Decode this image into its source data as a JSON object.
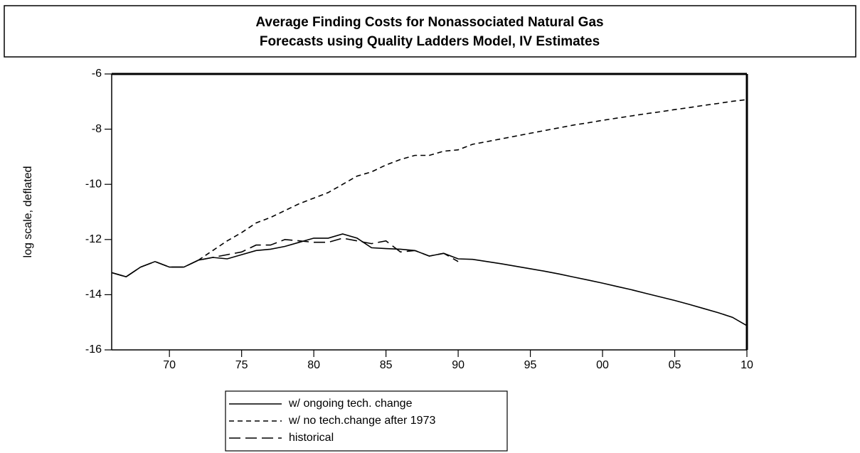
{
  "chart_data": {
    "type": "line",
    "title": "Average Finding Costs for Nonassociated Natural Gas",
    "subtitle": "Forecasts using Quality Ladders Model, IV Estimates",
    "y_label": "log scale, deflated",
    "x": [
      1966,
      1967,
      1968,
      1969,
      1970,
      1971,
      1972,
      1973,
      1974,
      1975,
      1976,
      1977,
      1978,
      1979,
      1980,
      1981,
      1982,
      1983,
      1984,
      1985,
      1986,
      1987,
      1988,
      1989,
      1990,
      1991,
      1992,
      1993,
      1994,
      1995,
      1996,
      1997,
      1998,
      1999,
      2000,
      2001,
      2002,
      2003,
      2004,
      2005,
      2006,
      2007,
      2008,
      2009,
      2010
    ],
    "series": [
      {
        "name": "w/ ongoing tech. change",
        "color": "#000000",
        "style": "solid",
        "values": [
          -13.2,
          -13.35,
          -13.0,
          -12.8,
          -13.0,
          -13.0,
          -12.75,
          -12.65,
          -12.7,
          -12.55,
          -12.4,
          -12.35,
          -12.25,
          -12.1,
          -11.95,
          -11.95,
          -11.8,
          -11.95,
          -12.3,
          -12.33,
          -12.35,
          -12.4,
          -12.6,
          -12.5,
          -12.7,
          -12.72,
          -12.8,
          -12.88,
          -12.97,
          -13.06,
          -13.15,
          -13.25,
          -13.36,
          -13.47,
          -13.58,
          -13.7,
          -13.82,
          -13.95,
          -14.08,
          -14.21,
          -14.35,
          -14.5,
          -14.65,
          -14.82,
          -15.12
        ]
      },
      {
        "name": "w/ no tech.change after 1973",
        "color": "#000000",
        "style": "dashed",
        "values": [
          null,
          null,
          null,
          null,
          null,
          null,
          -12.75,
          -12.4,
          -12.05,
          -11.75,
          -11.4,
          -11.2,
          -10.95,
          -10.7,
          -10.5,
          -10.3,
          -10.0,
          -9.7,
          -9.55,
          -9.3,
          -9.1,
          -8.95,
          -8.95,
          -8.8,
          -8.75,
          -8.55,
          -8.45,
          -8.35,
          -8.25,
          -8.15,
          -8.05,
          -7.95,
          -7.85,
          -7.77,
          -7.68,
          -7.6,
          -7.52,
          -7.44,
          -7.37,
          -7.29,
          -7.22,
          -7.14,
          -7.07,
          -6.99,
          -6.93
        ]
      },
      {
        "name": "historical",
        "color": "#000000",
        "style": "longdash",
        "values": [
          -13.2,
          -13.35,
          -13.0,
          -12.8,
          -13.0,
          -13.0,
          -12.75,
          -12.65,
          -12.55,
          -12.45,
          -12.2,
          -12.2,
          -12.0,
          -12.05,
          -12.1,
          -12.1,
          -11.95,
          -12.05,
          -12.15,
          -12.05,
          -12.45,
          -12.4,
          -12.6,
          -12.5,
          -12.8,
          null,
          null,
          null,
          null,
          null,
          null,
          null,
          null,
          null,
          null,
          null,
          null,
          null,
          null,
          null,
          null,
          null,
          null,
          null,
          null
        ]
      }
    ],
    "xlim": [
      1966,
      2010
    ],
    "xticks": [
      {
        "value": 1970,
        "label": "70"
      },
      {
        "value": 1975,
        "label": "75"
      },
      {
        "value": 1980,
        "label": "80"
      },
      {
        "value": 1985,
        "label": "85"
      },
      {
        "value": 1990,
        "label": "90"
      },
      {
        "value": 1995,
        "label": "95"
      },
      {
        "value": 2000,
        "label": "00"
      },
      {
        "value": 2005,
        "label": "05"
      },
      {
        "value": 2010,
        "label": "10"
      }
    ],
    "ylim": [
      -16,
      -6
    ],
    "yticks": [
      -16,
      -14,
      -12,
      -10,
      -8,
      -6
    ],
    "grid": false,
    "legend": "bottom"
  }
}
